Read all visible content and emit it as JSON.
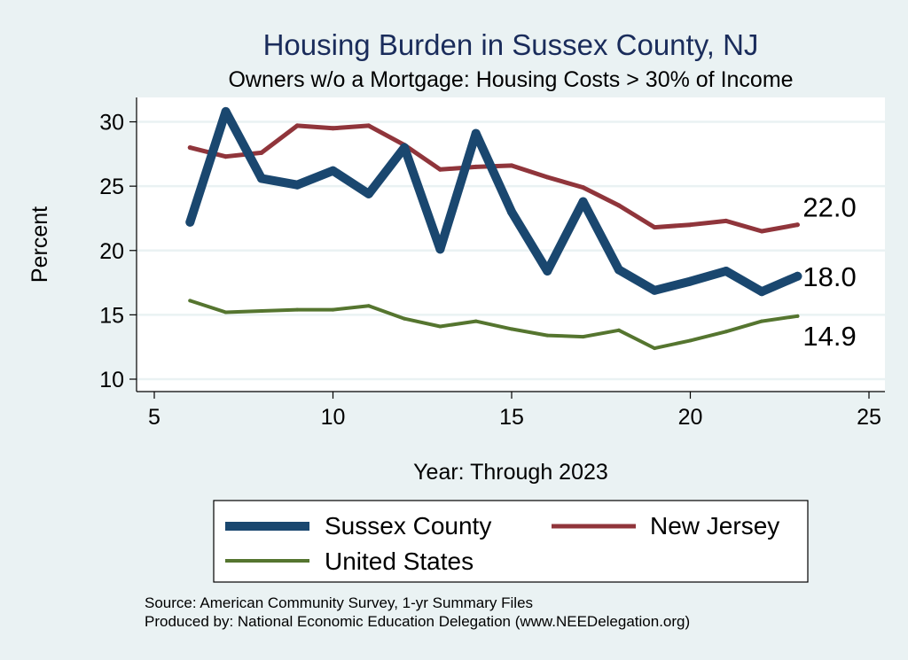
{
  "chart_data": {
    "type": "line",
    "title": "Housing Burden in Sussex County, NJ",
    "subtitle": "Owners w/o a Mortgage: Housing Costs > 30% of Income",
    "xlabel": "Year: Through 2023",
    "ylabel": "Percent",
    "xlim": [
      5,
      25
    ],
    "ylim": [
      10,
      31
    ],
    "xticks": [
      5,
      10,
      15,
      20,
      25
    ],
    "yticks": [
      10,
      15,
      20,
      25,
      30
    ],
    "grid": true,
    "legend_position": "bottom",
    "series": [
      {
        "name": "Sussex County",
        "color": "#1a476f",
        "x": [
          6,
          7,
          8,
          9,
          10,
          11,
          12,
          13,
          14,
          15,
          16,
          17,
          18,
          19,
          20,
          21,
          22,
          23
        ],
        "values": [
          22.2,
          30.8,
          25.6,
          25.1,
          26.2,
          24.4,
          28.0,
          20.1,
          29.1,
          23.0,
          18.4,
          23.8,
          18.5,
          16.9,
          17.6,
          18.4,
          16.8,
          18.0
        ],
        "end_label": "18.0"
      },
      {
        "name": "New Jersey",
        "color": "#90353b",
        "x": [
          6,
          7,
          8,
          9,
          10,
          11,
          12,
          13,
          14,
          15,
          16,
          17,
          18,
          19,
          20,
          21,
          22,
          23
        ],
        "values": [
          28.0,
          27.3,
          27.6,
          29.7,
          29.5,
          29.7,
          28.2,
          26.3,
          26.5,
          26.6,
          25.7,
          24.9,
          23.5,
          21.8,
          22.0,
          22.3,
          21.5,
          22.0
        ],
        "end_label": "22.0"
      },
      {
        "name": "United States",
        "color": "#55752f",
        "x": [
          6,
          7,
          8,
          9,
          10,
          11,
          12,
          13,
          14,
          15,
          16,
          17,
          18,
          19,
          20,
          21,
          22,
          23
        ],
        "values": [
          16.1,
          15.2,
          15.3,
          15.4,
          15.4,
          15.7,
          14.7,
          14.1,
          14.5,
          13.9,
          13.4,
          13.3,
          13.8,
          12.4,
          13.0,
          13.7,
          14.5,
          14.9
        ],
        "end_label": "14.9"
      }
    ],
    "notes": [
      "Source: American Community Survey, 1-yr Summary Files",
      "Produced by: National Economic Education Delegation (www.NEEDelegation.org)"
    ]
  }
}
